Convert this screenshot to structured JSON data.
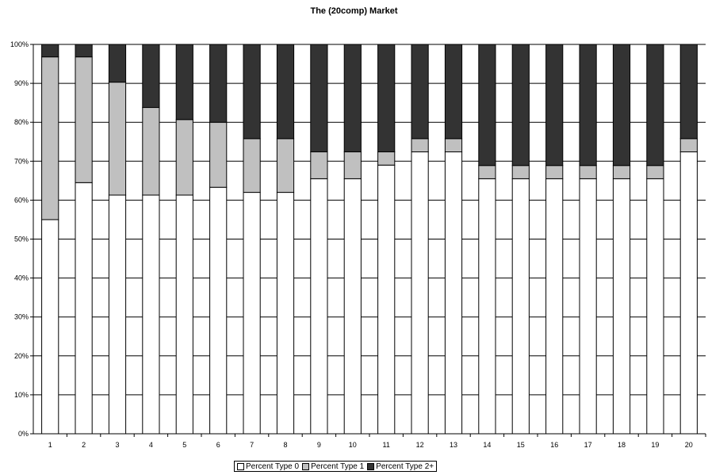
{
  "chart_data": {
    "type": "bar",
    "stacked": true,
    "percent_stacked": true,
    "title": "The (20comp) Market",
    "xlabel": "",
    "ylabel": "",
    "categories": [
      "1",
      "2",
      "3",
      "4",
      "5",
      "6",
      "7",
      "8",
      "9",
      "10",
      "11",
      "12",
      "13",
      "14",
      "15",
      "16",
      "17",
      "18",
      "19",
      "20"
    ],
    "ylim": [
      0,
      100
    ],
    "y_ticks": [
      "0%",
      "10%",
      "20%",
      "30%",
      "40%",
      "50%",
      "60%",
      "70%",
      "80%",
      "90%",
      "100%"
    ],
    "grid": true,
    "legend_position": "bottom",
    "series": [
      {
        "name": "Percent Type 0",
        "color": "#ffffff",
        "values": [
          55,
          64.5,
          61.3,
          61.3,
          61.3,
          63.3,
          62,
          62,
          65.5,
          65.5,
          69,
          72.4,
          72.4,
          65.5,
          65.5,
          65.5,
          65.5,
          65.5,
          65.5,
          72.4
        ]
      },
      {
        "name": "Percent Type 1",
        "color": "#c0c0c0",
        "values": [
          41.8,
          32.3,
          29,
          22.5,
          19.4,
          16.7,
          13.8,
          13.8,
          6.9,
          6.9,
          3.4,
          3.4,
          3.4,
          3.4,
          3.4,
          3.4,
          3.4,
          3.4,
          3.4,
          3.4
        ]
      },
      {
        "name": "Percent Type 2+",
        "color": "#333333",
        "values": [
          3.2,
          3.2,
          9.7,
          16.2,
          19.3,
          20,
          24.2,
          24.2,
          27.6,
          27.6,
          27.6,
          24.2,
          24.2,
          31.1,
          31.1,
          31.1,
          31.1,
          31.1,
          31.1,
          24.2
        ]
      }
    ]
  }
}
